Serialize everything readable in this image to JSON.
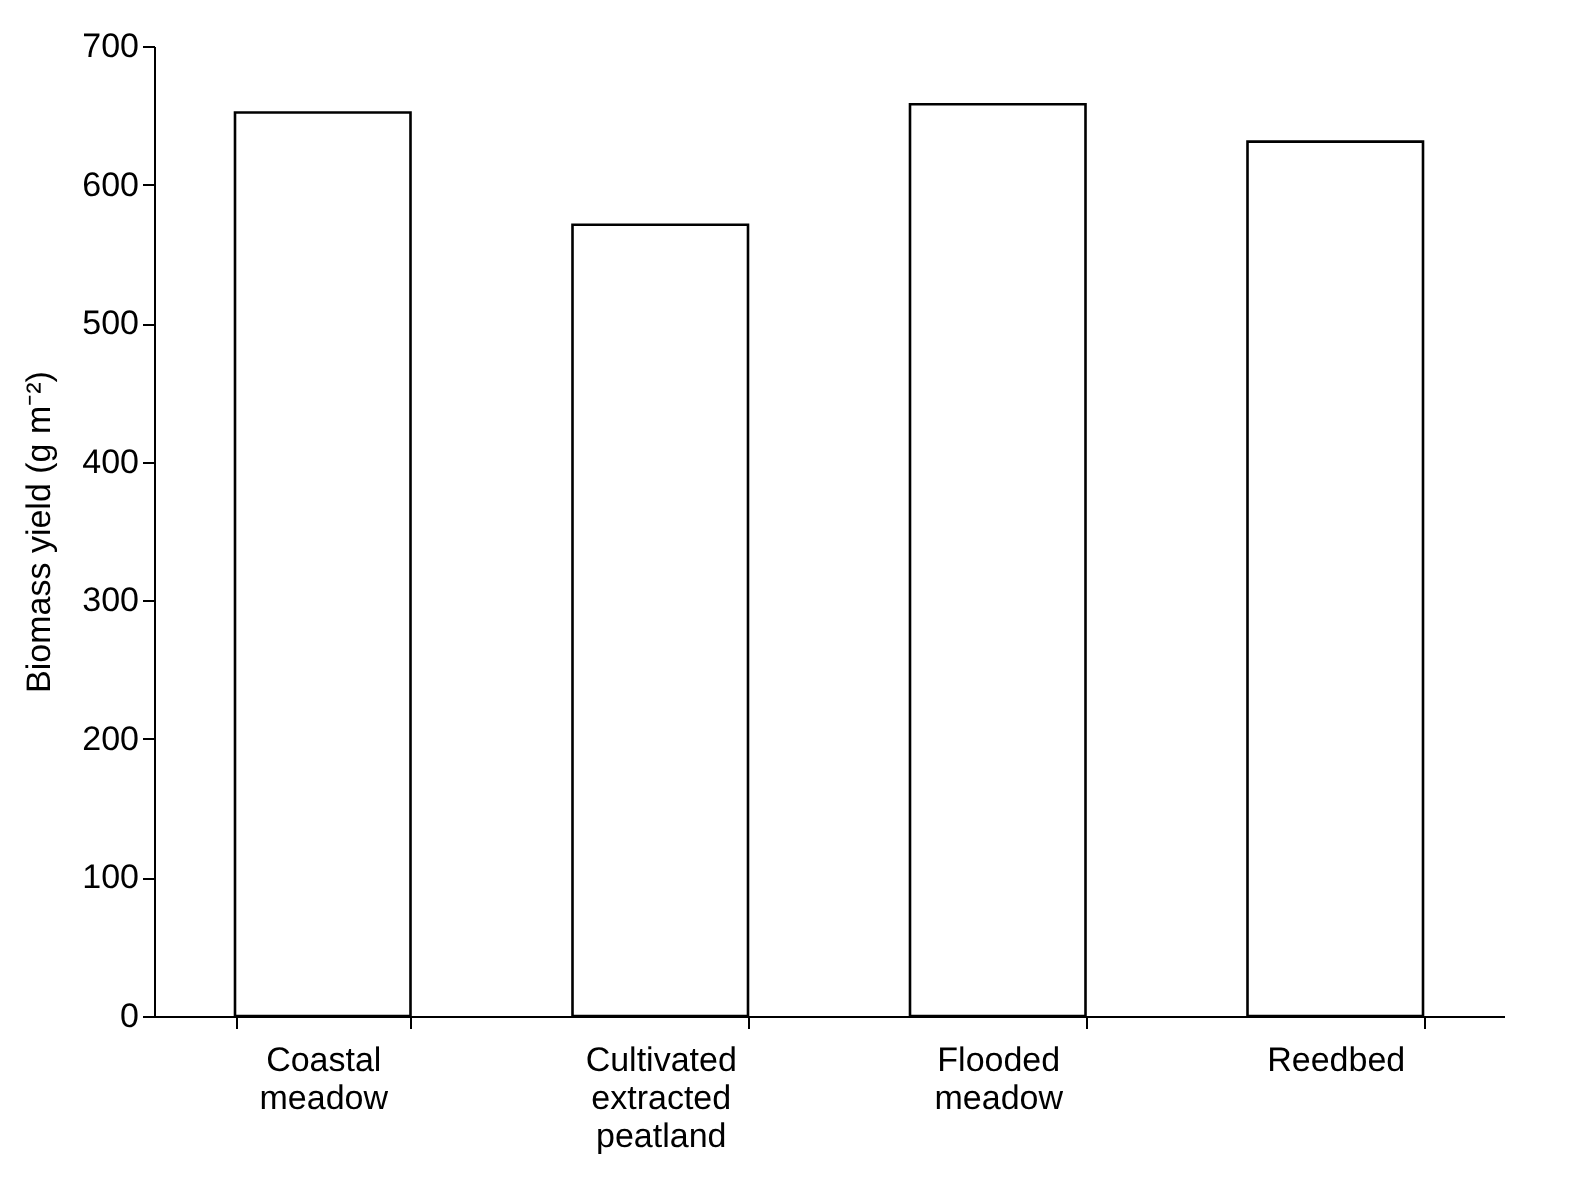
{
  "chart_data": {
    "type": "bar",
    "ylabel": "Biomass yield (g m⁻²)",
    "categories": [
      "Coastal meadow",
      "Cultivated extracted peatland",
      "Flooded meadow",
      "Reedbed"
    ],
    "values": [
      652,
      571,
      658,
      631
    ],
    "color": "#ffffff",
    "ylim": [
      0,
      700
    ],
    "yticks": [
      0,
      100,
      200,
      300,
      400,
      500,
      600,
      700
    ],
    "grid": false
  }
}
